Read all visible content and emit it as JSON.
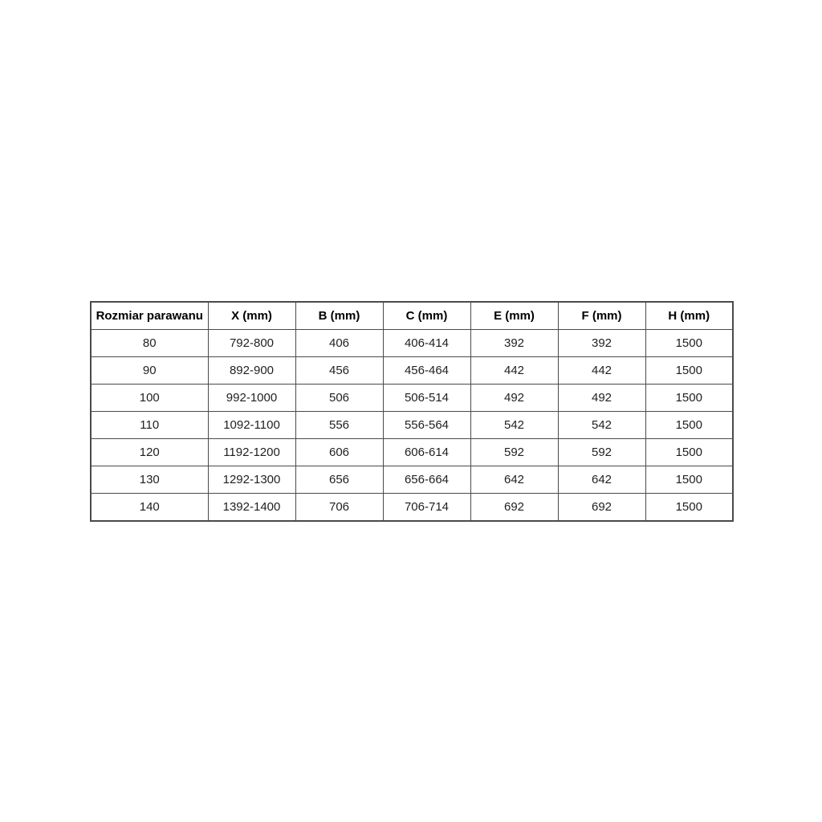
{
  "table": {
    "headers": [
      "Rozmiar parawanu",
      "X (mm)",
      "B (mm)",
      "C (mm)",
      "E (mm)",
      "F (mm)",
      "H (mm)"
    ],
    "rows": [
      [
        "80",
        "792-800",
        "406",
        "406-414",
        "392",
        "392",
        "1500"
      ],
      [
        "90",
        "892-900",
        "456",
        "456-464",
        "442",
        "442",
        "1500"
      ],
      [
        "100",
        "992-1000",
        "506",
        "506-514",
        "492",
        "492",
        "1500"
      ],
      [
        "110",
        "1092-1100",
        "556",
        "556-564",
        "542",
        "542",
        "1500"
      ],
      [
        "120",
        "1192-1200",
        "606",
        "606-614",
        "592",
        "592",
        "1500"
      ],
      [
        "130",
        "1292-1300",
        "656",
        "656-664",
        "642",
        "642",
        "1500"
      ],
      [
        "140",
        "1392-1400",
        "706",
        "706-714",
        "692",
        "692",
        "1500"
      ]
    ]
  },
  "colors": {
    "border": "#4a4a4a",
    "header_text": "#000000",
    "cell_text": "#1f1f1f",
    "background": "#ffffff"
  }
}
